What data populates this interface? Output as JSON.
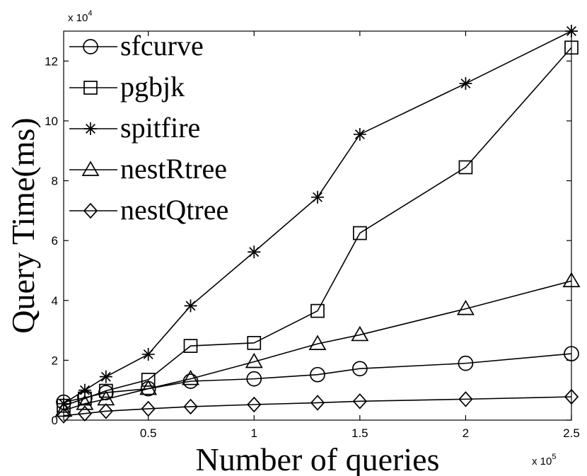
{
  "chart_data": {
    "type": "line",
    "title": "",
    "xlabel": "Number of queries",
    "ylabel": "Query Time(ms)",
    "x_multiplier": {
      "base": "x 10",
      "exp": "5"
    },
    "y_multiplier": {
      "base": "x 10",
      "exp": "4"
    },
    "xlim": [
      0.1,
      2.5
    ],
    "ylim": [
      0,
      13
    ],
    "x_ticks": [
      0.5,
      1,
      1.5,
      2,
      2.5
    ],
    "x_tick_labels": [
      "0.5",
      "1",
      "1.5",
      "2",
      "2.5"
    ],
    "y_ticks": [
      0,
      2,
      4,
      6,
      8,
      10,
      12
    ],
    "y_tick_labels": [
      "0",
      "2",
      "4",
      "6",
      "8",
      "10",
      "12"
    ],
    "x": [
      0.1,
      0.2,
      0.3,
      0.5,
      0.7,
      1.0,
      1.3,
      1.5,
      2.0,
      2.5
    ],
    "grid": false,
    "legend_position": "top-left",
    "series": [
      {
        "name": "sfcurve",
        "marker": "circle",
        "values": [
          0.6,
          0.75,
          0.92,
          1.05,
          1.3,
          1.38,
          1.52,
          1.72,
          1.9,
          2.22
        ]
      },
      {
        "name": "pgbjk",
        "marker": "square",
        "values": [
          0.48,
          0.72,
          0.98,
          1.35,
          2.48,
          2.58,
          3.65,
          6.25,
          8.45,
          12.45
        ]
      },
      {
        "name": "spitfire",
        "marker": "star",
        "values": [
          0.55,
          1.0,
          1.45,
          2.2,
          3.82,
          5.62,
          7.45,
          9.55,
          11.25,
          13.0
        ]
      },
      {
        "name": "nestRtree",
        "marker": "triangle",
        "values": [
          0.32,
          0.55,
          0.7,
          1.05,
          1.38,
          1.95,
          2.55,
          2.85,
          3.72,
          4.65
        ]
      },
      {
        "name": "nestQtree",
        "marker": "diamond",
        "values": [
          0.15,
          0.22,
          0.3,
          0.38,
          0.45,
          0.52,
          0.58,
          0.63,
          0.7,
          0.78
        ]
      }
    ]
  }
}
